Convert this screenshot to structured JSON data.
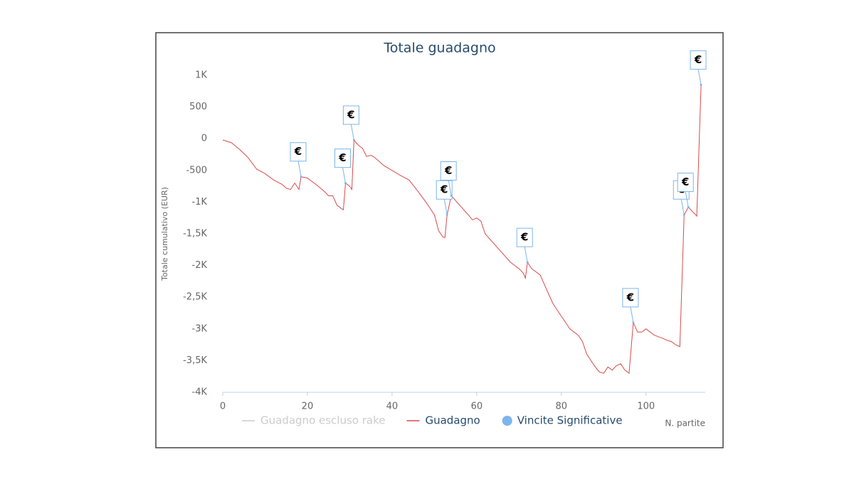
{
  "chart_data": {
    "type": "line",
    "title": "Totale guadagno",
    "xlabel": "N. partite",
    "ylabel": "Totale cumulativo (EUR)",
    "xlim": [
      0,
      114
    ],
    "xticks": [
      0,
      20,
      40,
      60,
      80,
      100
    ],
    "ylim": [
      -4000,
      1000
    ],
    "yticks": [
      {
        "value": 1000,
        "label": "1K"
      },
      500,
      0,
      -500,
      {
        "value": -1000,
        "label": "-1K"
      },
      {
        "value": -1500,
        "label": "-1,5K"
      },
      {
        "value": -2000,
        "label": "-2K"
      },
      {
        "value": -2500,
        "label": "-2,5K"
      },
      {
        "value": -3000,
        "label": "-3K"
      },
      {
        "value": -3500,
        "label": "-3,5K"
      },
      {
        "value": -4000,
        "label": "-4K"
      }
    ],
    "grid": false,
    "x": [
      0,
      2,
      4,
      6,
      8,
      10,
      12,
      14,
      15,
      16,
      17,
      18,
      18.5,
      20,
      22,
      24,
      25,
      26,
      27,
      28,
      28.5,
      29,
      30,
      30.5,
      31,
      32,
      33,
      34,
      35,
      36,
      38,
      40,
      42,
      44,
      46,
      48,
      50,
      51,
      52,
      52.5,
      53,
      54,
      56,
      58,
      59,
      60,
      61,
      62,
      64,
      66,
      68,
      70,
      71,
      71.5,
      72,
      73,
      75,
      76,
      78,
      80,
      82,
      84,
      85,
      86,
      88,
      89,
      90,
      91,
      92,
      93,
      94,
      95,
      96,
      97,
      98,
      99,
      100,
      102,
      104,
      105,
      106,
      107,
      108,
      109,
      110,
      111,
      112,
      113
    ],
    "series": [
      {
        "name": "Guadagno escluso rake",
        "color": "#cccccc",
        "visible": false
      },
      {
        "name": "Guadagno",
        "color": "#d94a4a",
        "visible": true,
        "values": [
          -20,
          -60,
          -170,
          -300,
          -480,
          -550,
          -650,
          -720,
          -780,
          -800,
          -700,
          -800,
          -600,
          -620,
          -720,
          -830,
          -900,
          -900,
          -1050,
          -1100,
          -1120,
          -700,
          -750,
          -800,
          -20,
          -100,
          -150,
          -280,
          -260,
          -300,
          -420,
          -500,
          -580,
          -650,
          -820,
          -1000,
          -1200,
          -1450,
          -1550,
          -1560,
          -1200,
          -900,
          -1050,
          -1200,
          -1280,
          -1250,
          -1300,
          -1500,
          -1650,
          -1800,
          -1950,
          -2050,
          -2120,
          -2200,
          -1950,
          -2050,
          -2150,
          -2300,
          -2600,
          -2800,
          -3000,
          -3100,
          -3200,
          -3400,
          -3600,
          -3680,
          -3700,
          -3600,
          -3650,
          -3580,
          -3550,
          -3650,
          -3700,
          -2900,
          -3050,
          -3050,
          -3000,
          -3100,
          -3150,
          -3180,
          -3200,
          -3250,
          -3280,
          -1200,
          -1080,
          -1150,
          -1220,
          850
        ]
      }
    ],
    "flags": {
      "name": "Vincite Significative",
      "color": "#7cb5ec",
      "label": "€",
      "x": [
        18.5,
        29,
        31,
        53,
        54,
        72,
        97,
        109,
        110,
        113
      ],
      "values": [
        -600,
        -700,
        -20,
        -1200,
        -900,
        -1950,
        -2900,
        -1200,
        -1080,
        850
      ]
    }
  }
}
